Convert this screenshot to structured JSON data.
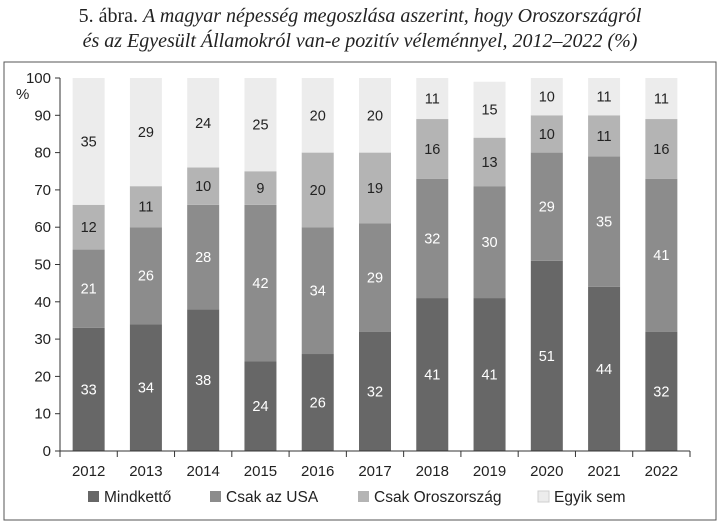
{
  "title": {
    "prefix": "5. ábra.",
    "line1": "A magyar népesség megoszlása aszerint, hogy Oroszországról",
    "line2": "és az Egyesült Államokról van-e pozitív véleménnyel, 2012–2022 (%)"
  },
  "chart_data": {
    "type": "bar",
    "stacked": true,
    "categories": [
      "2012",
      "2013",
      "2014",
      "2015",
      "2016",
      "2017",
      "2018",
      "2019",
      "2020",
      "2021",
      "2022"
    ],
    "ylabel": "%",
    "ylim": [
      0,
      100
    ],
    "yticks": [
      0,
      10,
      20,
      30,
      40,
      50,
      60,
      70,
      80,
      90,
      100
    ],
    "grid": false,
    "legend_position": "bottom",
    "series": [
      {
        "name": "Mindkettő",
        "color": "#676767",
        "label_color": "#ffffff",
        "values": [
          33,
          34,
          38,
          24,
          26,
          32,
          41,
          41,
          51,
          44,
          32
        ]
      },
      {
        "name": "Csak az USA",
        "color": "#8c8c8c",
        "label_color": "#ffffff",
        "values": [
          21,
          26,
          28,
          42,
          34,
          29,
          32,
          30,
          29,
          35,
          41
        ]
      },
      {
        "name": "Csak Oroszország",
        "color": "#b4b4b4",
        "label_color": "#222222",
        "values": [
          12,
          11,
          10,
          9,
          20,
          19,
          16,
          13,
          10,
          11,
          16
        ]
      },
      {
        "name": "Egyik sem",
        "color": "#ececec",
        "label_color": "#222222",
        "values": [
          35,
          29,
          24,
          25,
          20,
          20,
          11,
          15,
          10,
          11,
          11
        ]
      }
    ]
  }
}
